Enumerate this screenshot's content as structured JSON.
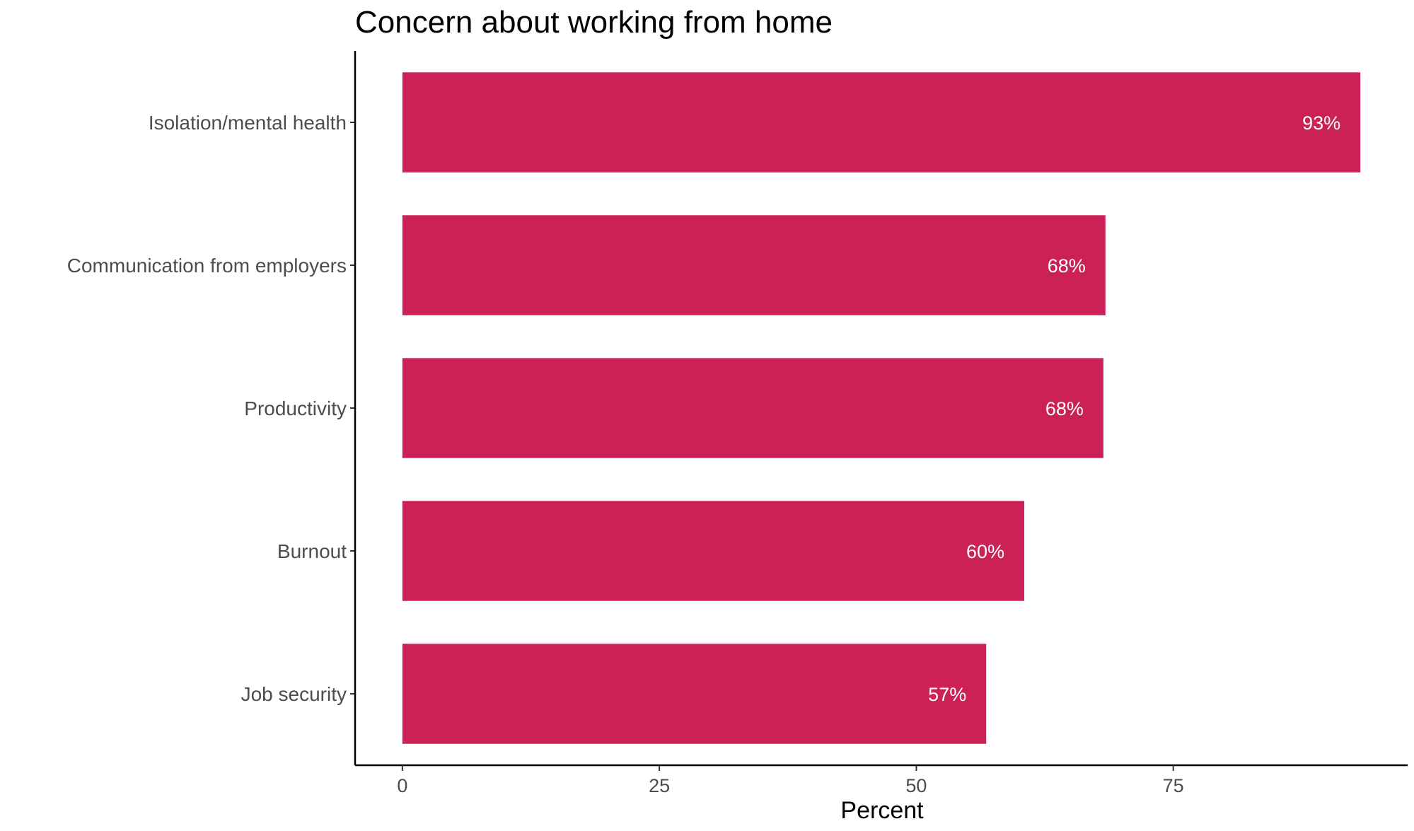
{
  "chart_data": {
    "type": "bar",
    "orientation": "horizontal",
    "title": "Concern about working from home",
    "xlabel": "Percent",
    "ylabel": "",
    "categories": [
      "Isolation/mental health",
      "Communication from employers",
      "Productivity",
      "Burnout",
      "Job security"
    ],
    "values": [
      93.2,
      68.4,
      68.2,
      60.5,
      56.8
    ],
    "data_labels": [
      "93%",
      "68%",
      "68%",
      "60%",
      "57%"
    ],
    "xticks": [
      0,
      25,
      50,
      75
    ],
    "xtick_labels": [
      "0",
      "25",
      "50",
      "75"
    ],
    "xlim": [
      -4.6,
      97.8
    ],
    "grid": false,
    "legend": "none",
    "bar_color": "#CC2157"
  }
}
